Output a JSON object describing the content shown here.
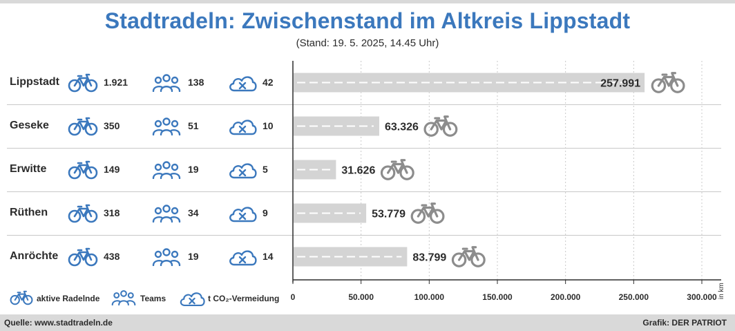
{
  "header": {
    "title": "Stadtradeln: Zwischenstand im Altkreis Lippstadt",
    "subtitle": "(Stand: 19. 5. 2025, 14.45 Uhr)"
  },
  "colors": {
    "accent_blue": "#3b78bd",
    "bar_gray": "#d4d4d4",
    "bike_gray": "#8c8c8c",
    "footer_gray": "#d9d9d9"
  },
  "icons": {
    "riders": "bicycle-icon",
    "teams": "team-icon",
    "co2": "co2-cloud-icon",
    "bar_end": "bicycle-icon"
  },
  "legend": {
    "riders": "aktive Radelnde",
    "teams": "Teams",
    "co2": "t CO₂-Vermeidung"
  },
  "rows": [
    {
      "name": "Lippstadt",
      "riders": "1.921",
      "teams": "138",
      "co2": "42",
      "km_label": "257.991"
    },
    {
      "name": "Geseke",
      "riders": "350",
      "teams": "51",
      "co2": "10",
      "km_label": "63.326"
    },
    {
      "name": "Erwitte",
      "riders": "149",
      "teams": "19",
      "co2": "5",
      "km_label": "31.626"
    },
    {
      "name": "Rüthen",
      "riders": "318",
      "teams": "34",
      "co2": "9",
      "km_label": "53.779"
    },
    {
      "name": "Anröchte",
      "riders": "438",
      "teams": "19",
      "co2": "14",
      "km_label": "83.799"
    }
  ],
  "chart_data": {
    "type": "bar",
    "orientation": "horizontal",
    "categories": [
      "Lippstadt",
      "Geseke",
      "Erwitte",
      "Rüthen",
      "Anröchte"
    ],
    "values": [
      257991,
      63326,
      31626,
      53779,
      83799
    ],
    "value_labels": [
      "257.991",
      "63.326",
      "31.626",
      "53.779",
      "83.799"
    ],
    "xlim": [
      0,
      300000
    ],
    "xticks": [
      0,
      50000,
      100000,
      150000,
      200000,
      250000,
      300000
    ],
    "xtick_labels": [
      "0",
      "50.000",
      "100.000",
      "150.000",
      "200.000",
      "250.000",
      "300.000"
    ],
    "unit_label": "in km",
    "grid": "vertical-dotted"
  },
  "footer": {
    "source": "Quelle: www.stadtradeln.de",
    "credit": "Grafik: DER PATRIOT"
  }
}
